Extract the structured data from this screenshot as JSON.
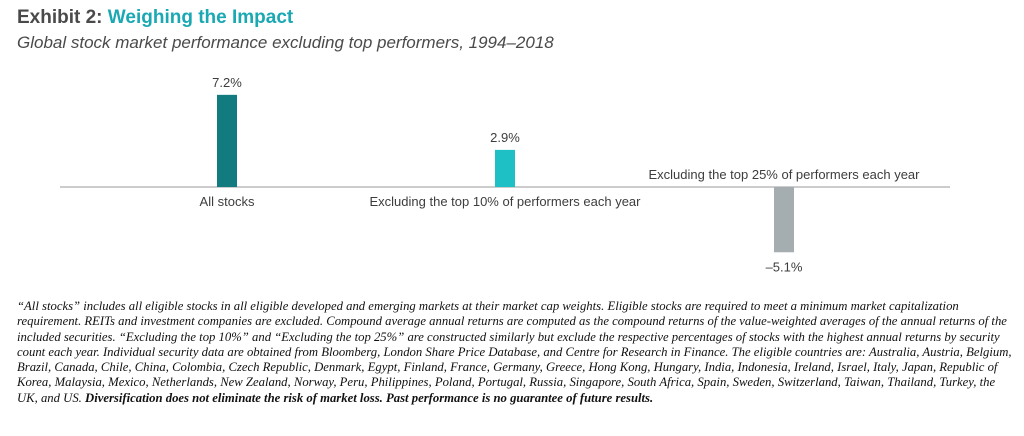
{
  "header": {
    "title_prefix": "Exhibit 2:",
    "title_main": "Weighing the Impact",
    "subtitle": "Global stock market performance excluding top performers, 1994–2018"
  },
  "colors": {
    "title_accent": "#1aa8b3",
    "bar_all_stocks": "#127b80",
    "bar_top10": "#1ec0c6",
    "bar_top25": "#a6adb0",
    "axis": "#9a9a9a"
  },
  "chart_data": {
    "type": "bar",
    "categories": [
      "All stocks",
      "Excluding the top 10% of performers each year",
      "Excluding the top 25% of performers each year"
    ],
    "values": [
      7.2,
      2.9,
      -5.1
    ],
    "value_labels": [
      "7.2%",
      "2.9%",
      "–5.1%"
    ],
    "unit": "%",
    "title": "",
    "xlabel": "",
    "ylabel": "",
    "ylim": [
      -5.1,
      7.2
    ],
    "grid": false,
    "legend": "none"
  },
  "footnote": {
    "text": "“All stocks” includes all eligible stocks in all eligible developed and emerging markets at their market cap weights. Eligible stocks are required to meet a minimum market capitalization requirement. REITs and investment companies are excluded. Compound average annual returns are computed as the compound returns of the value-weighted averages of the annual returns of the included securities. “Excluding the top 10%” and “Excluding the top 25%” are constructed similarly but exclude the respective percentages of stocks with the highest annual returns by security count each year. Individual security data are obtained from Bloomberg, London Share Price Database, and Centre for Research in Finance. The eligible countries are: Australia, Austria, Belgium, Brazil, Canada, Chile, China, Colombia, Czech Republic, Denmark, Egypt, Finland, France, Germany, Greece, Hong Kong, Hungary, India, Indonesia, Ireland, Israel, Italy, Japan, Republic of Korea, Malaysia, Mexico, Netherlands, New Zealand, Norway, Peru, Philippines, Poland, Portugal, Russia, Singapore, South Africa, Spain, Sweden, Switzerland, Taiwan, Thailand, Turkey, the UK, and US.",
    "disclaimer": "Diversification does not eliminate the risk of market loss. Past performance is no guarantee of future results."
  }
}
